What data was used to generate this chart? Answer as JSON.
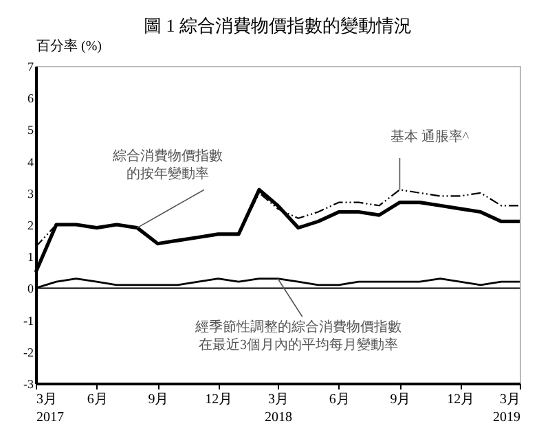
{
  "chart_data": {
    "type": "line",
    "title": "圖 1  綜合消費物價指數的變動情況",
    "ylabel": "百分率 (%)",
    "x": [
      "2017-03",
      "2017-04",
      "2017-05",
      "2017-06",
      "2017-07",
      "2017-08",
      "2017-09",
      "2017-10",
      "2017-11",
      "2017-12",
      "2018-01",
      "2018-02",
      "2018-03",
      "2018-04",
      "2018-05",
      "2018-06",
      "2018-07",
      "2018-08",
      "2018-09",
      "2018-10",
      "2018-11",
      "2018-12",
      "2019-01",
      "2019-02",
      "2019-03"
    ],
    "series": [
      {
        "name": "綜合消費物價指數的按年變動率",
        "color": "#000000",
        "line_style": "solid",
        "values": [
          0.5,
          2.0,
          2.0,
          1.9,
          2.0,
          1.9,
          1.4,
          1.5,
          1.6,
          1.7,
          1.7,
          3.1,
          2.6,
          1.9,
          2.1,
          2.4,
          2.4,
          2.3,
          2.7,
          2.7,
          2.6,
          2.5,
          2.4,
          2.1,
          2.1
        ]
      },
      {
        "name": "基本 通脹率^",
        "color": "#000000",
        "line_style": "dashed",
        "values": [
          1.3,
          2.0,
          2.0,
          1.9,
          2.0,
          1.9,
          1.4,
          1.5,
          1.6,
          1.7,
          1.7,
          3.0,
          2.5,
          2.2,
          2.4,
          2.7,
          2.7,
          2.6,
          3.1,
          3.0,
          2.9,
          2.9,
          3.0,
          2.6,
          2.6
        ]
      },
      {
        "name": "經季節性調整的綜合消費物價指數在最近3個月內的平均每月變動率",
        "color": "#000000",
        "line_style": "solid",
        "values": [
          0.0,
          0.2,
          0.3,
          0.2,
          0.1,
          0.1,
          0.1,
          0.1,
          0.2,
          0.3,
          0.2,
          0.3,
          0.3,
          0.2,
          0.1,
          0.1,
          0.2,
          0.2,
          0.2,
          0.2,
          0.3,
          0.2,
          0.1,
          0.2,
          0.2
        ]
      }
    ],
    "xlim": [
      "2017-03",
      "2019-03"
    ],
    "xticks": [
      {
        "value": "2017-03",
        "label": "3月\n2017"
      },
      {
        "value": "2017-06",
        "label": "6月"
      },
      {
        "value": "2017-09",
        "label": "9月"
      },
      {
        "value": "2017-12",
        "label": "12月"
      },
      {
        "value": "2018-03",
        "label": "3月\n2018"
      },
      {
        "value": "2018-06",
        "label": "6月"
      },
      {
        "value": "2018-09",
        "label": "9月"
      },
      {
        "value": "2018-12",
        "label": "12月"
      },
      {
        "value": "2019-03",
        "label": "3月\n2019"
      }
    ],
    "ylim": [
      -3,
      7
    ],
    "yticks": [
      -3,
      -2,
      -1,
      0,
      1,
      2,
      3,
      4,
      5,
      6,
      7
    ],
    "ref_lines": [
      {
        "axis": "y",
        "value": 0,
        "color": "#000000"
      }
    ],
    "grid": false,
    "legend": false,
    "marker": "none"
  }
}
